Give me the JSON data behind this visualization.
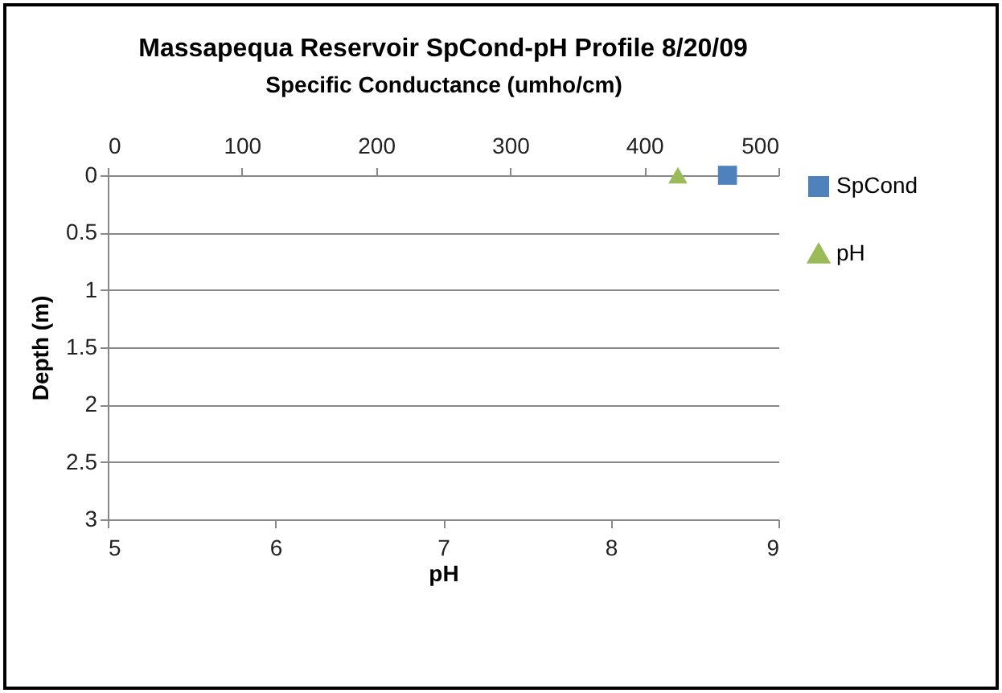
{
  "chart_data": {
    "type": "line",
    "title": "Massapequa Reservoir SpCond-pH Profile 8/20/09",
    "x2label": "Specific Conductance  (umho/cm)",
    "xlabel": "pH",
    "ylabel": "Depth (m)",
    "xlim": [
      5,
      9
    ],
    "xticks": [
      5,
      6,
      7,
      8,
      9
    ],
    "x2lim": [
      0,
      500
    ],
    "x2ticks": [
      0,
      100,
      200,
      300,
      400,
      500
    ],
    "ylim": [
      3,
      0
    ],
    "yticks": [
      0,
      0.5,
      1,
      1.5,
      2,
      2.5,
      3
    ],
    "grid": "y",
    "legend": "right",
    "series": [
      {
        "name": "SpCond",
        "color": "#4f81bd",
        "axis": "x2",
        "marker": "square",
        "x": [
          462
        ],
        "values": [
          0
        ]
      },
      {
        "name": "pH",
        "color": "#9bbb59",
        "marker": "triangle",
        "x": [
          8.4
        ],
        "values": [
          0
        ]
      }
    ]
  }
}
